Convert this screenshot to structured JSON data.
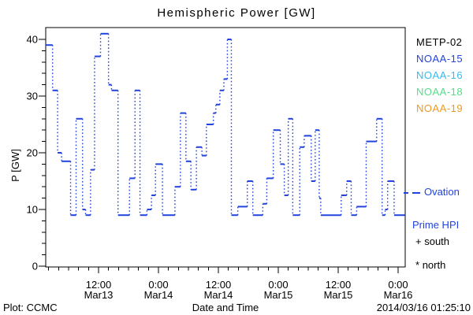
{
  "title": "Hemispheric Power [GW]",
  "axes": {
    "xlabel": "Date and Time",
    "ylabel": "P [GW]",
    "y_ticks": [
      0,
      10,
      20,
      30,
      40
    ],
    "x_ticks": [
      {
        "hour": 12,
        "time": "12:00",
        "date": "Mar13"
      },
      {
        "hour": 24,
        "time": "0:00",
        "date": "Mar14"
      },
      {
        "hour": 36,
        "time": "12:00",
        "date": "Mar14"
      },
      {
        "hour": 48,
        "time": "0:00",
        "date": "Mar15"
      },
      {
        "hour": 60,
        "time": "12:00",
        "date": "Mar15"
      },
      {
        "hour": 72,
        "time": "0:00",
        "date": "Mar16"
      }
    ]
  },
  "legend": {
    "satellites": [
      {
        "label": "METP-02",
        "color": "#000000"
      },
      {
        "label": "NOAA-15",
        "color": "#2243dd"
      },
      {
        "label": "NOAA-16",
        "color": "#33bbee"
      },
      {
        "label": "NOAA-18",
        "color": "#55dd88"
      },
      {
        "label": "NOAA-19",
        "color": "#ee9922"
      }
    ],
    "line": {
      "label_line1": "Ovation",
      "label_line2": "Prime HPI",
      "color": "#2243dd"
    },
    "south": {
      "marker": "+",
      "label": "south"
    },
    "north": {
      "marker": "*",
      "label": "north"
    }
  },
  "footer": {
    "left": "Plot: CCMC",
    "right": "2014/03/16 01:25:10"
  },
  "chart_data": {
    "type": "line",
    "style": "step-post",
    "title": "Hemispheric Power [GW]",
    "xlabel": "Date and Time",
    "ylabel": "P [GW]",
    "x_unit": "hours since 2014-03-13 00:00 UT",
    "xlim": [
      1.4,
      73.4
    ],
    "ylim": [
      0,
      42
    ],
    "x_major_tick_hours": 12,
    "x_minor_tick_hours": 2,
    "y_major_tick": 10,
    "y_minor_tick": 2,
    "grid": false,
    "legend_position": "right-margin",
    "series": [
      {
        "name": "Ovation Prime HPI",
        "color": "#2243dd",
        "units": "GW",
        "t_end": 73.4,
        "steps": [
          [
            1.4,
            39
          ],
          [
            2.8,
            31
          ],
          [
            3.8,
            20
          ],
          [
            4.6,
            18.5
          ],
          [
            6.4,
            9
          ],
          [
            7.5,
            26
          ],
          [
            8.8,
            10
          ],
          [
            9.4,
            9
          ],
          [
            10.4,
            17
          ],
          [
            11.2,
            37
          ],
          [
            12.4,
            41
          ],
          [
            14.0,
            32
          ],
          [
            14.6,
            31
          ],
          [
            15.9,
            9
          ],
          [
            18.2,
            15.5
          ],
          [
            19.3,
            31
          ],
          [
            20.3,
            9
          ],
          [
            21.7,
            10
          ],
          [
            22.6,
            12.5
          ],
          [
            23.4,
            18
          ],
          [
            24.8,
            9
          ],
          [
            27.3,
            14
          ],
          [
            28.4,
            27
          ],
          [
            29.5,
            18.5
          ],
          [
            30.5,
            13.5
          ],
          [
            31.6,
            21
          ],
          [
            32.7,
            19.5
          ],
          [
            33.6,
            25
          ],
          [
            35.0,
            27
          ],
          [
            35.5,
            28.5
          ],
          [
            36.3,
            31
          ],
          [
            37.1,
            33
          ],
          [
            37.8,
            40
          ],
          [
            38.6,
            9
          ],
          [
            39.9,
            10.5
          ],
          [
            41.8,
            15
          ],
          [
            42.9,
            9
          ],
          [
            44.9,
            11
          ],
          [
            45.7,
            15.5
          ],
          [
            47.0,
            24
          ],
          [
            48.4,
            18
          ],
          [
            49.2,
            12.5
          ],
          [
            50.0,
            26
          ],
          [
            50.9,
            9
          ],
          [
            52.3,
            21
          ],
          [
            53.2,
            23
          ],
          [
            54.6,
            15
          ],
          [
            55.4,
            24
          ],
          [
            56.2,
            12
          ],
          [
            56.5,
            9
          ],
          [
            60.6,
            12.5
          ],
          [
            61.7,
            15
          ],
          [
            62.6,
            9
          ],
          [
            63.7,
            10.5
          ],
          [
            65.6,
            22
          ],
          [
            67.7,
            26
          ],
          [
            68.8,
            9
          ],
          [
            69.4,
            10
          ],
          [
            69.9,
            15
          ],
          [
            71.2,
            9
          ]
        ]
      }
    ]
  }
}
